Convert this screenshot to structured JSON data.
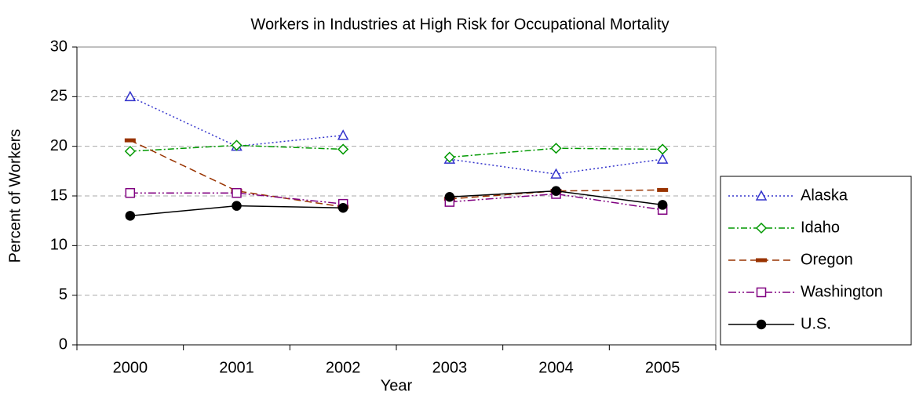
{
  "chart_data": {
    "type": "line",
    "title": "Workers in Industries at High Risk for Occupational Mortality",
    "x_label": "Year",
    "y_label": "Percent of Workers",
    "categories": [
      "2000",
      "2001",
      "2002",
      "2003",
      "2004",
      "2005"
    ],
    "line_break_before_index": 3,
    "ylim": [
      0,
      30
    ],
    "yticks": [
      0,
      5,
      10,
      15,
      20,
      25,
      30
    ],
    "grid": true,
    "legend": "right",
    "series": [
      {
        "name": "Alaska",
        "color": "#3333cc",
        "dash": "2,3",
        "marker": "triangle",
        "values": [
          25,
          20,
          21.1,
          18.7,
          17.2,
          18.7
        ]
      },
      {
        "name": "Idaho",
        "color": "#009900",
        "dash": "8,3,2,3",
        "marker": "diamond",
        "values": [
          19.5,
          20.1,
          19.7,
          18.9,
          19.8,
          19.7
        ]
      },
      {
        "name": "Oregon",
        "color": "#993300",
        "dash": "9,5",
        "marker": "dash",
        "values": [
          20.6,
          15.5,
          13.9,
          14.7,
          15.5,
          15.6
        ]
      },
      {
        "name": "Washington",
        "color": "#800080",
        "dash": "10,3,2,3,2,3",
        "marker": "square",
        "values": [
          15.3,
          15.3,
          14.2,
          14.4,
          15.2,
          13.6
        ]
      },
      {
        "name": "U.S.",
        "color": "#000000",
        "dash": "none",
        "marker": "circle",
        "values": [
          13.0,
          14.0,
          13.8,
          14.9,
          15.5,
          14.1
        ]
      }
    ]
  }
}
